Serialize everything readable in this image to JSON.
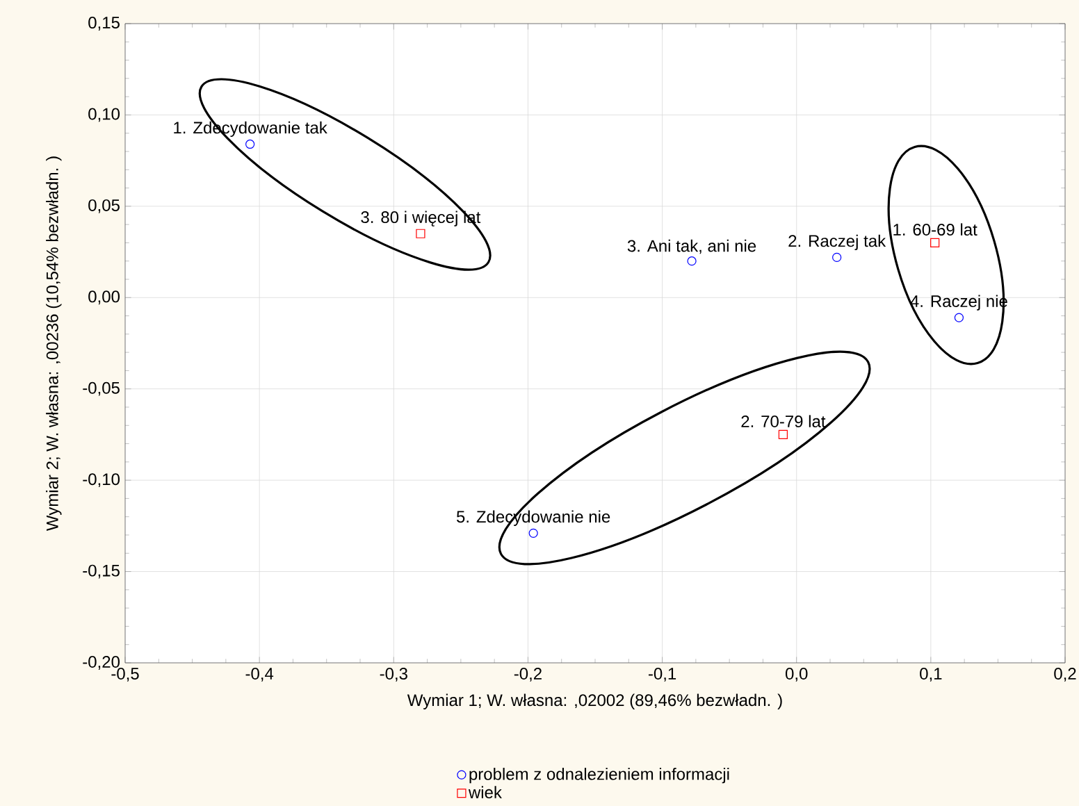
{
  "chart_data": {
    "type": "scatter",
    "xlabel": "Wymiar 1; W. własna: ,02002 (89,46% bezwładn. )",
    "ylabel": "Wymiar 2; W. własna: ,00236 (10,54% bezwładn. )",
    "xlim": [
      -0.5,
      0.2
    ],
    "ylim": [
      -0.2,
      0.15
    ],
    "xticks": [
      {
        "value": -0.5,
        "label": "-0,5"
      },
      {
        "value": -0.4,
        "label": "-0,4"
      },
      {
        "value": -0.3,
        "label": "-0,3"
      },
      {
        "value": -0.2,
        "label": "-0,2"
      },
      {
        "value": -0.1,
        "label": "-0,1"
      },
      {
        "value": 0.0,
        "label": "0,0"
      },
      {
        "value": 0.1,
        "label": "0,1"
      },
      {
        "value": 0.2,
        "label": "0,2"
      }
    ],
    "yticks": [
      {
        "value": -0.2,
        "label": "-0,20"
      },
      {
        "value": -0.15,
        "label": "-0,15"
      },
      {
        "value": -0.1,
        "label": "-0,10"
      },
      {
        "value": -0.05,
        "label": "-0,05"
      },
      {
        "value": 0.0,
        "label": "0,00"
      },
      {
        "value": 0.05,
        "label": "0,05"
      },
      {
        "value": 0.1,
        "label": "0,10"
      },
      {
        "value": 0.15,
        "label": "0,15"
      }
    ],
    "grid": true,
    "legend": "bottom",
    "series": [
      {
        "name": "problem z odnalezieniem informacji",
        "color": "#0000ff",
        "marker": "circle",
        "x": [
          -0.407,
          0.03,
          -0.078,
          0.121,
          -0.196
        ],
        "values": [
          0.084,
          0.022,
          0.02,
          -0.011,
          -0.129
        ]
      },
      {
        "name": "wiek",
        "color": "#ff0000",
        "marker": "square",
        "x": [
          0.103,
          -0.01,
          -0.28
        ],
        "values": [
          0.03,
          -0.075,
          0.035
        ]
      }
    ],
    "annotations": [
      {
        "text": "1. Zdecydowanie tak",
        "x": -0.407,
        "y": 0.084
      },
      {
        "text": "2. Raczej tak",
        "x": 0.03,
        "y": 0.022
      },
      {
        "text": "3. Ani tak, ani nie",
        "x": -0.078,
        "y": 0.02
      },
      {
        "text": "4. Raczej nie",
        "x": 0.121,
        "y": -0.011
      },
      {
        "text": "5. Zdecydowanie nie",
        "x": -0.196,
        "y": -0.129
      },
      {
        "text": "1. 60-69 lat",
        "x": 0.103,
        "y": 0.03
      },
      {
        "text": "2. 70-79 lat",
        "x": -0.01,
        "y": -0.075
      },
      {
        "text": "3. 80 i więcej lat",
        "x": -0.28,
        "y": 0.035
      }
    ]
  }
}
